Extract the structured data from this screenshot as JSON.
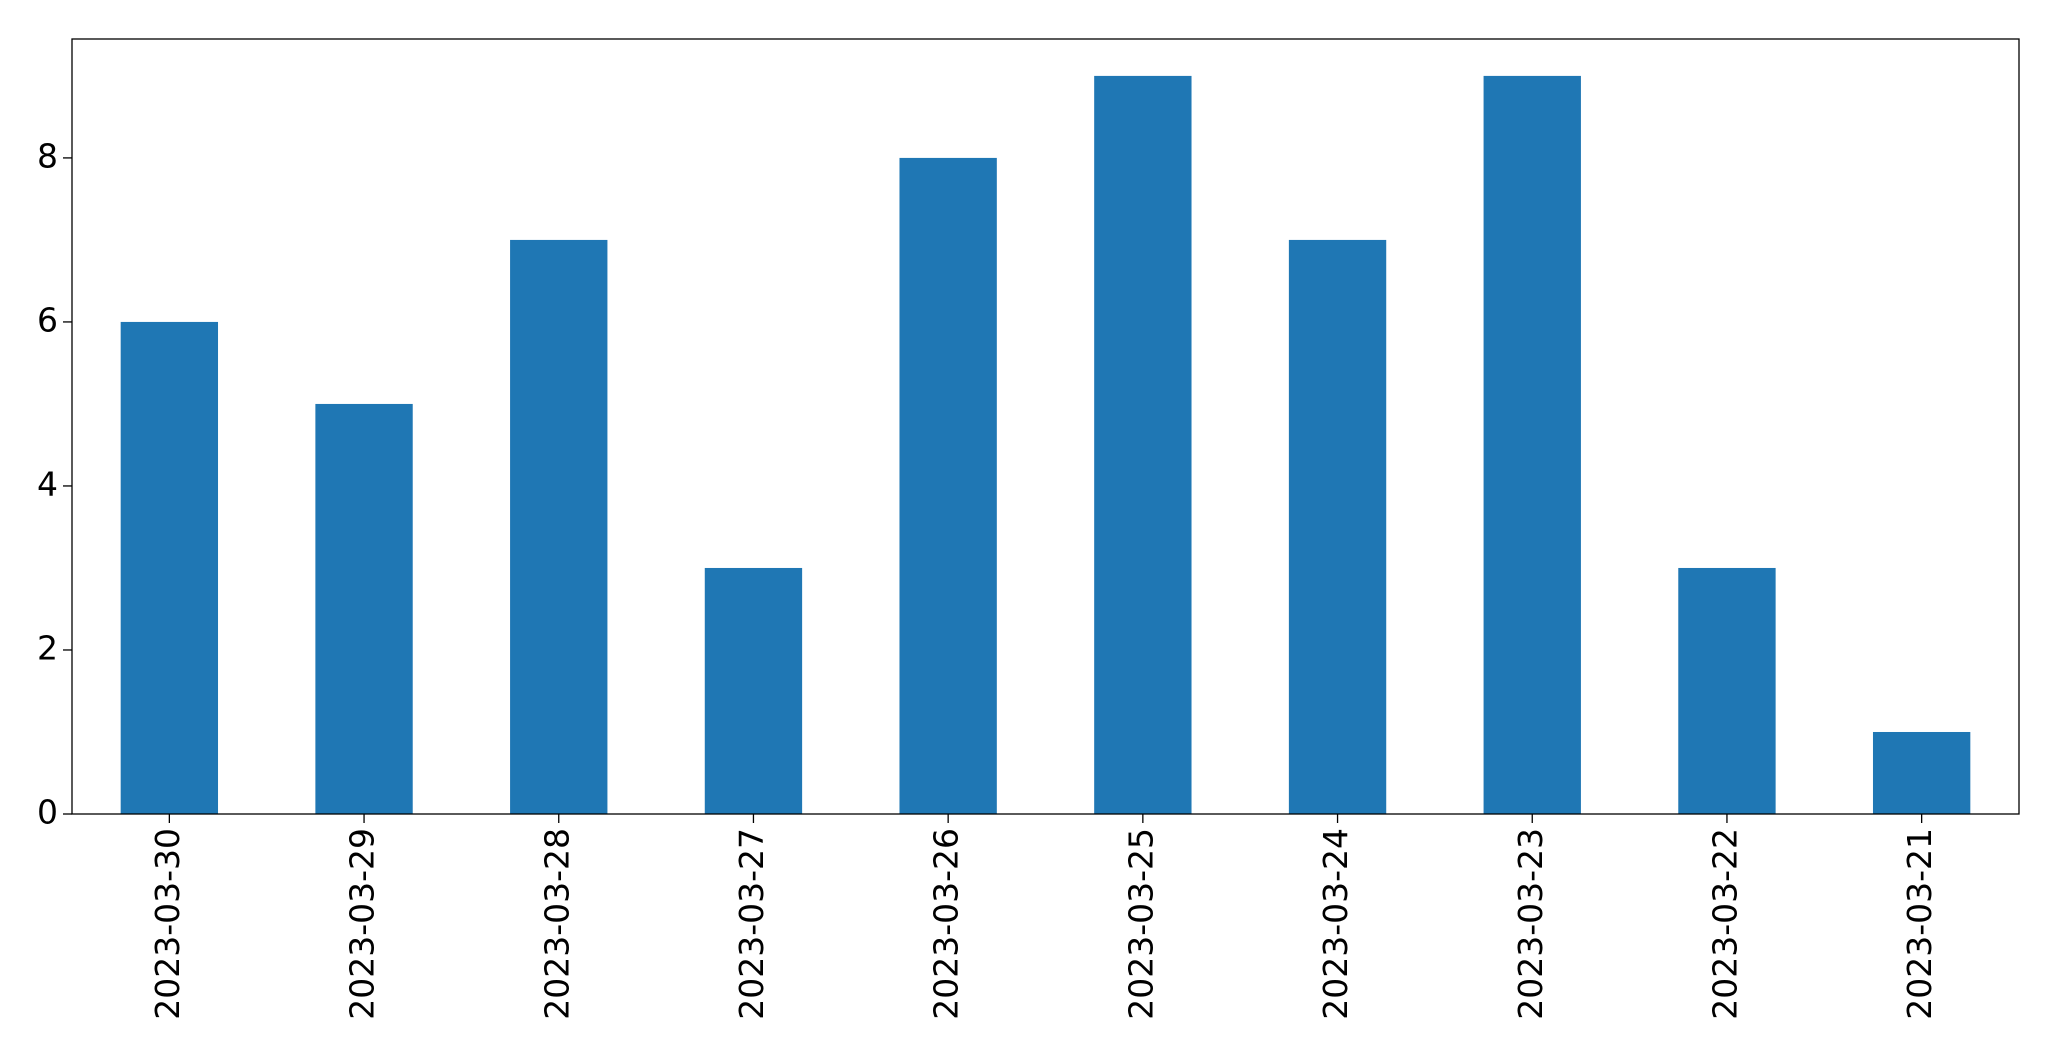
{
  "chart_data": {
    "type": "bar",
    "categories": [
      "2023-03-30",
      "2023-03-29",
      "2023-03-28",
      "2023-03-27",
      "2023-03-26",
      "2023-03-25",
      "2023-03-24",
      "2023-03-23",
      "2023-03-22",
      "2023-03-21"
    ],
    "values": [
      6,
      5,
      7,
      3,
      8,
      9,
      7,
      9,
      3,
      1
    ],
    "color": "#1f77b4",
    "ylim": [
      0,
      9.45
    ],
    "yticks": [
      0,
      2,
      4,
      6,
      8
    ],
    "grid": false
  }
}
